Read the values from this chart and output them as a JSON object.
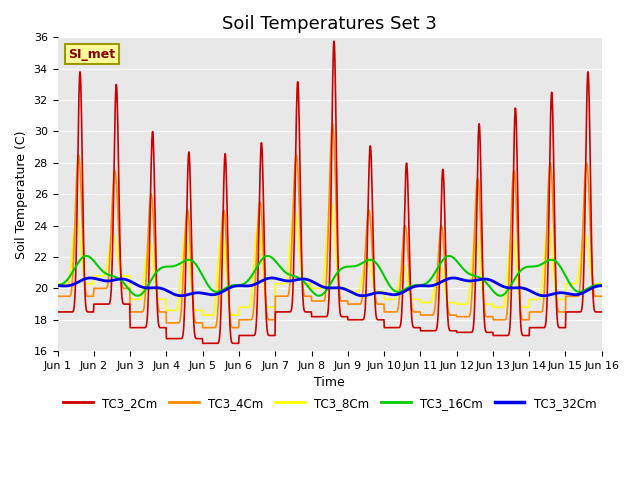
{
  "title": "Soil Temperatures Set 3",
  "xlabel": "Time",
  "ylabel": "Soil Temperature (C)",
  "ylim": [
    16,
    36
  ],
  "xlim": [
    0,
    15
  ],
  "xtick_labels": [
    "Jun 1",
    "Jun 2",
    "Jun 3",
    "Jun 4",
    "Jun 5",
    "Jun 6",
    "Jun 7",
    "Jun 8",
    "Jun 9",
    "Jun 10",
    "Jun 11",
    "Jun 12",
    "Jun 13",
    "Jun 14",
    "Jun 15",
    "Jun 16"
  ],
  "annotation_text": "SI_met",
  "bg_color": "#e8e8e8",
  "fig_color": "#ffffff",
  "series_colors": {
    "TC3_2Cm": "#cc0000",
    "TC3_4Cm": "#ff8800",
    "TC3_8Cm": "#ffff00",
    "TC3_16Cm": "#00cc00",
    "TC3_32Cm": "#0000ee"
  },
  "series_linewidths": {
    "TC3_2Cm": 1.2,
    "TC3_4Cm": 1.2,
    "TC3_8Cm": 1.2,
    "TC3_16Cm": 1.5,
    "TC3_32Cm": 2.0
  },
  "day_peaks_2cm": [
    33.8,
    33.0,
    30.0,
    28.7,
    28.6,
    29.3,
    33.2,
    35.8,
    29.1,
    28.0,
    27.6,
    30.5,
    31.5,
    32.5,
    33.8
  ],
  "day_peaks_4cm": [
    28.5,
    27.5,
    26.0,
    25.0,
    25.0,
    25.5,
    28.5,
    30.5,
    25.0,
    24.0,
    24.0,
    27.0,
    27.5,
    28.0,
    28.0
  ],
  "day_peaks_8cm": [
    24.5,
    23.5,
    23.0,
    23.5,
    23.5,
    24.0,
    25.0,
    25.5,
    22.0,
    21.5,
    21.5,
    23.5,
    23.5,
    24.0,
    23.5
  ],
  "day_mins_2cm": [
    18.5,
    19.0,
    17.5,
    16.8,
    16.5,
    17.0,
    18.5,
    18.2,
    18.0,
    17.5,
    17.3,
    17.2,
    17.0,
    17.5,
    18.5
  ],
  "mean_base": 20.0,
  "min_base": 19.0
}
